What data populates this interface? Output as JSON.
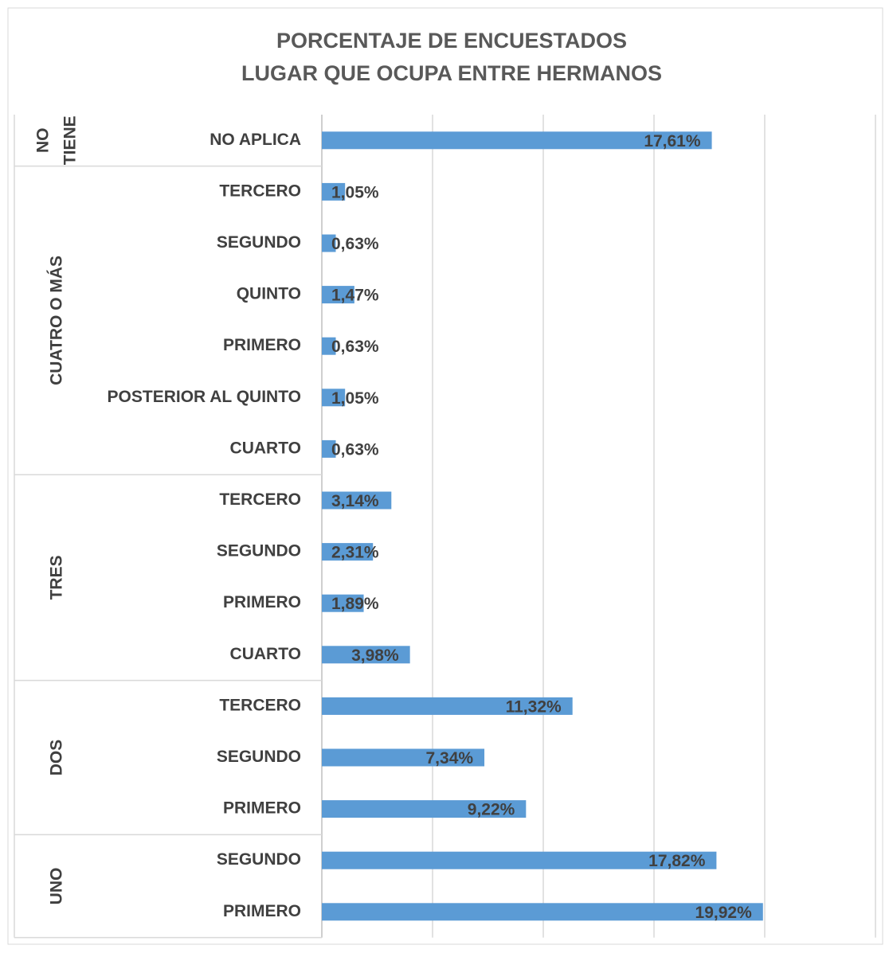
{
  "chart_data": {
    "type": "bar",
    "orientation": "horizontal",
    "title": [
      "PORCENTAJE DE ENCUESTADOS",
      "LUGAR QUE OCUPA ENTRE HERMANOS"
    ],
    "color": "#5b9bd5",
    "xlim": [
      0,
      25
    ],
    "xticks": [
      0,
      5,
      10,
      15,
      20,
      25
    ],
    "grid": true,
    "groups": [
      {
        "label": [
          "NO",
          "TIENE"
        ],
        "categories": [
          "NO APLICA"
        ],
        "values": [
          17.61
        ],
        "value_labels": [
          "17,61%"
        ]
      },
      {
        "label": [
          "CUATRO O MÁS"
        ],
        "categories": [
          "TERCERO",
          "SEGUNDO",
          "QUINTO",
          "PRIMERO",
          "POSTERIOR AL QUINTO",
          "CUARTO"
        ],
        "values": [
          1.05,
          0.63,
          1.47,
          0.63,
          1.05,
          0.63
        ],
        "value_labels": [
          "1,05%",
          "0,63%",
          "1,47%",
          "0,63%",
          "1,05%",
          "0,63%"
        ]
      },
      {
        "label": [
          "TRES"
        ],
        "categories": [
          "TERCERO",
          "SEGUNDO",
          "PRIMERO",
          "CUARTO"
        ],
        "values": [
          3.14,
          2.31,
          1.89,
          3.98
        ],
        "value_labels": [
          "3,14%",
          "2,31%",
          "1,89%",
          "3,98%"
        ]
      },
      {
        "label": [
          "DOS"
        ],
        "categories": [
          "TERCERO",
          "SEGUNDO",
          "PRIMERO"
        ],
        "values": [
          11.32,
          7.34,
          9.22
        ],
        "value_labels": [
          "11,32%",
          "7,34%",
          "9,22%"
        ]
      },
      {
        "label": [
          "UNO"
        ],
        "categories": [
          "SEGUNDO",
          "PRIMERO"
        ],
        "values": [
          17.82,
          19.92
        ],
        "value_labels": [
          "17,82%",
          "19,92%"
        ]
      }
    ]
  }
}
